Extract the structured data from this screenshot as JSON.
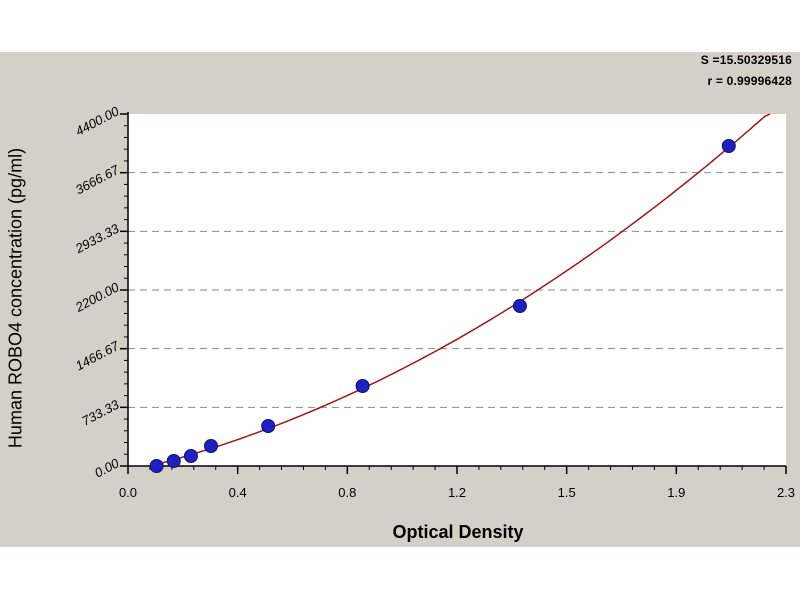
{
  "stats": {
    "s": "S =15.50329516",
    "r": "r = 0.99996428"
  },
  "chart_data": {
    "type": "scatter",
    "title": "",
    "xlabel": "Optical Density",
    "ylabel": "Human ROBO4  concentration (pg/ml)",
    "xlim": [
      0.0,
      2.3
    ],
    "ylim": [
      0,
      4400
    ],
    "x_ticks": [
      "0.0",
      "0.4",
      "0.8",
      "1.2",
      "1.5",
      "1.9",
      "2.3"
    ],
    "y_ticks": [
      "0.00",
      "733.33",
      "1466.67",
      "2200.00",
      "2933.33",
      "3666.67",
      "4400.00"
    ],
    "grid": "horizontal dashed",
    "series": [
      {
        "x": [
          0.1,
          0.16,
          0.22,
          0.29,
          0.49,
          0.82,
          1.37,
          2.1
        ],
        "y": [
          0,
          62.5,
          125,
          250,
          500,
          1000,
          2000,
          4000
        ]
      }
    ],
    "fit_curve": true,
    "colors": {
      "points": "#2020c0",
      "curve": "#a01818",
      "grid": "#8a8a8a",
      "background": "#ffffff",
      "panel": "#d4d0c8"
    }
  }
}
